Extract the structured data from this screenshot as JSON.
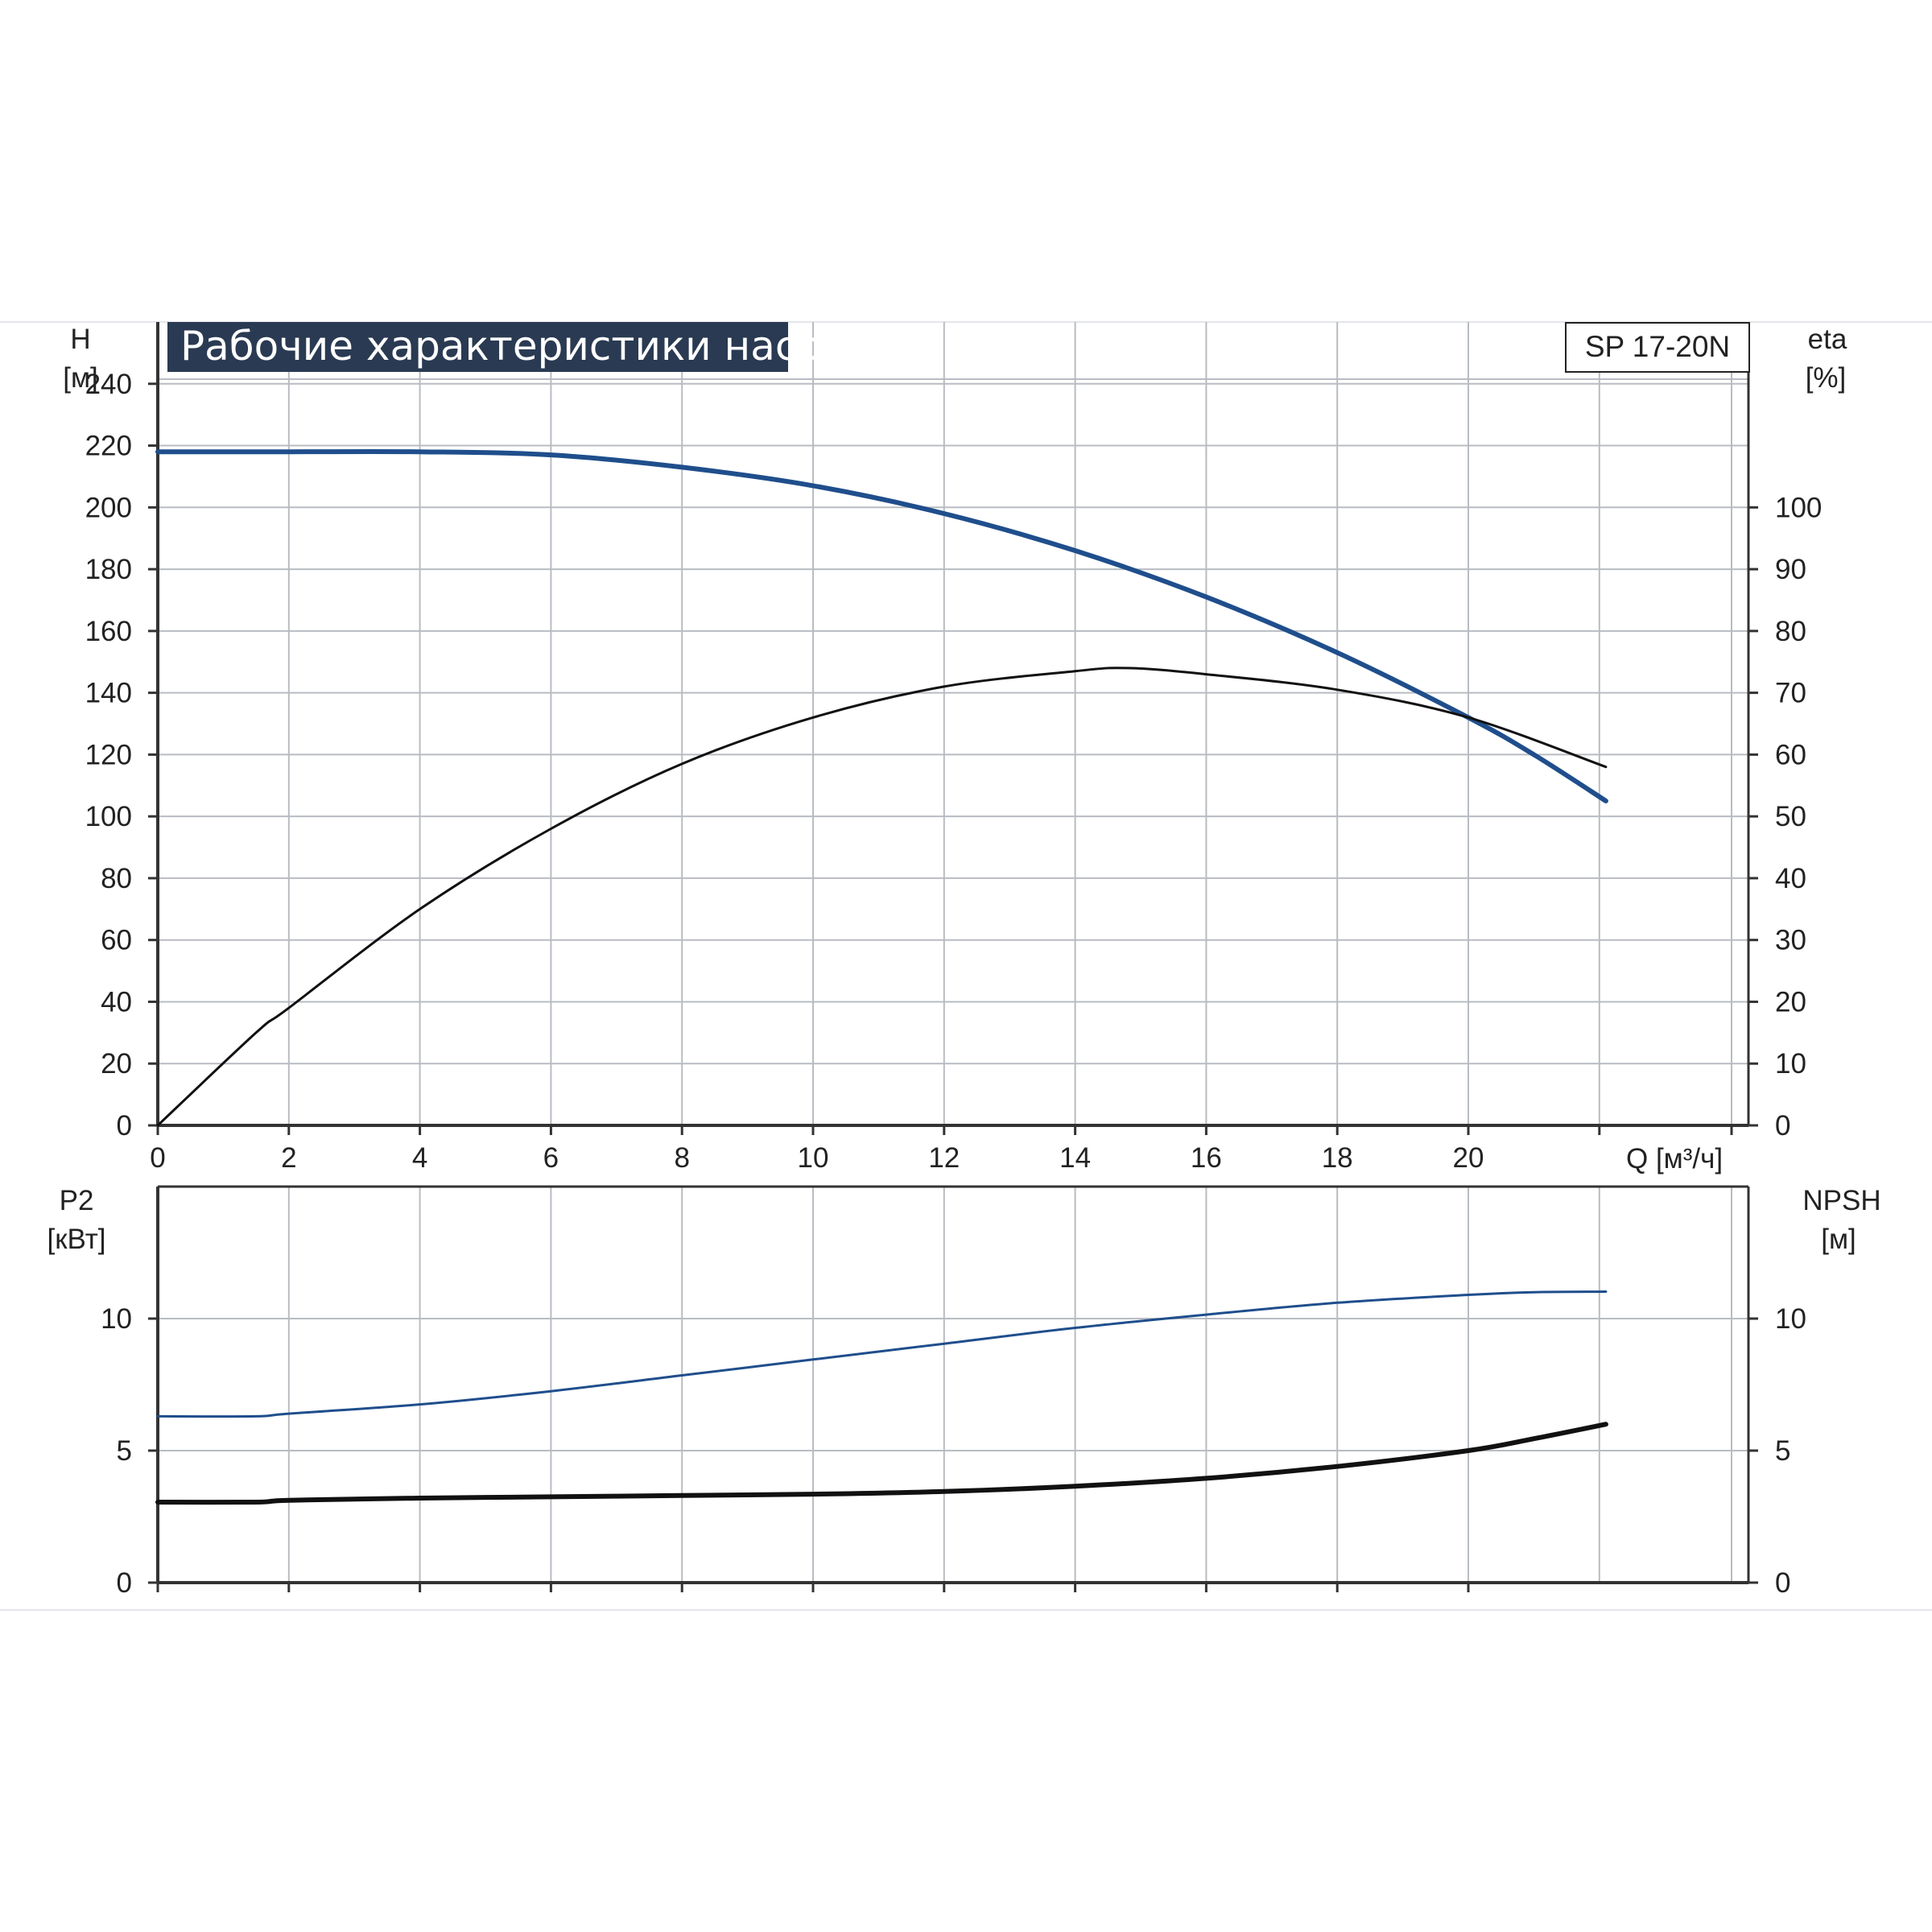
{
  "chart_data": [
    {
      "type": "line",
      "title": "Рабочие характеристики насоса",
      "model_label": "SP 17-20N",
      "xlabel": "Q [м³/ч]",
      "x_ticks": [
        0,
        2,
        4,
        6,
        8,
        10,
        12,
        14,
        16,
        18,
        20
      ],
      "xlim": [
        0,
        24.3
      ],
      "grid": true,
      "y_left": {
        "label_top": "H",
        "label_unit": "[м]",
        "ticks": [
          0,
          20,
          40,
          60,
          80,
          100,
          120,
          140,
          160,
          180,
          200,
          220,
          240
        ],
        "lim": [
          0,
          260
        ]
      },
      "y_right": {
        "label_top": "eta",
        "label_unit": "[%]",
        "ticks": [
          0,
          10,
          20,
          30,
          40,
          50,
          60,
          70,
          80,
          90,
          100
        ],
        "lim": [
          0,
          130
        ]
      },
      "series": [
        {
          "axis": "left",
          "color": "#1f4e8c",
          "x": [
            0,
            1.5,
            2,
            4,
            6,
            8,
            10,
            12,
            14,
            16,
            18,
            20,
            21,
            22.1
          ],
          "y": [
            218,
            218,
            218,
            218,
            217,
            213,
            207,
            198,
            186,
            171,
            153,
            132,
            120,
            105
          ]
        },
        {
          "axis": "right",
          "color": "#111111",
          "x": [
            0,
            1.5,
            2,
            4,
            6,
            8,
            10,
            12,
            14,
            14.8,
            16,
            18,
            20,
            22.1
          ],
          "y": [
            0,
            15,
            19,
            35,
            48,
            58.5,
            66,
            71,
            73.5,
            74,
            73,
            70.5,
            66,
            58
          ]
        }
      ]
    },
    {
      "type": "line",
      "x_ticks": [
        0,
        2,
        4,
        6,
        8,
        10,
        12,
        14,
        16,
        18,
        20
      ],
      "xlim": [
        0,
        24.3
      ],
      "grid": true,
      "y_left": {
        "label_top": "P2",
        "label_unit": "[кВт]",
        "ticks": [
          0,
          5,
          10
        ],
        "lim": [
          0,
          15
        ]
      },
      "y_right": {
        "label_top": "NPSH",
        "label_unit": "[м]",
        "ticks": [
          0,
          5,
          10
        ],
        "lim": [
          0,
          15
        ]
      },
      "series": [
        {
          "axis": "left",
          "color": "#1f4e8c",
          "x": [
            0,
            1.5,
            2,
            4,
            6,
            8,
            10,
            12,
            14,
            16,
            18,
            20,
            21,
            22.1
          ],
          "y": [
            6.3,
            6.3,
            6.4,
            6.75,
            7.25,
            7.85,
            8.45,
            9.05,
            9.65,
            10.15,
            10.6,
            10.9,
            11.0,
            11.02
          ]
        },
        {
          "axis": "right",
          "color": "#111111",
          "x": [
            0,
            1.5,
            2,
            4,
            6,
            8,
            10,
            12,
            14,
            16,
            18,
            20,
            21,
            22.1
          ],
          "y": [
            3.05,
            3.05,
            3.12,
            3.2,
            3.25,
            3.3,
            3.35,
            3.45,
            3.65,
            3.95,
            4.4,
            5.0,
            5.45,
            6.0
          ]
        }
      ]
    }
  ]
}
